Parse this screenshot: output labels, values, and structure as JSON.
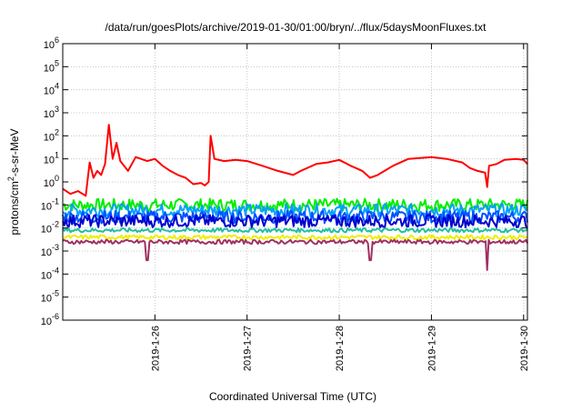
{
  "chart_data": {
    "type": "line",
    "title": "/data/run/goesPlots/archive/2019-01-30/01:00/bryn/../flux/5daysMoonFluxes.txt",
    "xlabel": "Coordinated Universal Time (UTC)",
    "ylabel": "protons/cm2-s-sr-MeV",
    "ylabel_parts": {
      "before": "protons/cm",
      "sup": "2",
      "after": "-s-sr-MeV"
    },
    "y_scale": "log",
    "ylim": [
      1e-06,
      1000000.0
    ],
    "xlim": [
      "2019-01-25T00:00",
      "2019-01-30T01:00"
    ],
    "grid": true,
    "y_ticks": [
      {
        "value": 1e-06,
        "base": "10",
        "exp": "-6"
      },
      {
        "value": 1e-05,
        "base": "10",
        "exp": "-5"
      },
      {
        "value": 0.0001,
        "base": "10",
        "exp": "-4"
      },
      {
        "value": 0.001,
        "base": "10",
        "exp": "-3"
      },
      {
        "value": 0.01,
        "base": "10",
        "exp": "-2"
      },
      {
        "value": 0.1,
        "base": "10",
        "exp": "-1"
      },
      {
        "value": 1.0,
        "base": "10",
        "exp": "0"
      },
      {
        "value": 10.0,
        "base": "10",
        "exp": "1"
      },
      {
        "value": 100.0,
        "base": "10",
        "exp": "2"
      },
      {
        "value": 1000.0,
        "base": "10",
        "exp": "3"
      },
      {
        "value": 10000.0,
        "base": "10",
        "exp": "4"
      },
      {
        "value": 100000.0,
        "base": "10",
        "exp": "5"
      },
      {
        "value": 1000000.0,
        "base": "10",
        "exp": "6"
      }
    ],
    "x_ticks": [
      {
        "date": "2019-01-26",
        "label": "2019-1-26"
      },
      {
        "date": "2019-01-27",
        "label": "2019-1-27"
      },
      {
        "date": "2019-01-28",
        "label": "2019-1-28"
      },
      {
        "date": "2019-01-29",
        "label": "2019-1-29"
      },
      {
        "date": "2019-01-30",
        "label": "2019-1-30"
      }
    ],
    "series": [
      {
        "color": "#ff0000",
        "points": [
          [
            "2019-01-25T00:00",
            0.5
          ],
          [
            "2019-01-25T02:00",
            0.3
          ],
          [
            "2019-01-25T04:00",
            0.4
          ],
          [
            "2019-01-25T06:00",
            0.25
          ],
          [
            "2019-01-25T07:00",
            7
          ],
          [
            "2019-01-25T08:00",
            1.5
          ],
          [
            "2019-01-25T09:00",
            3
          ],
          [
            "2019-01-25T10:00",
            2
          ],
          [
            "2019-01-25T11:00",
            6
          ],
          [
            "2019-01-25T12:00",
            300
          ],
          [
            "2019-01-25T13:00",
            10
          ],
          [
            "2019-01-25T14:00",
            50
          ],
          [
            "2019-01-25T15:00",
            8
          ],
          [
            "2019-01-25T17:00",
            3
          ],
          [
            "2019-01-25T19:00",
            12
          ],
          [
            "2019-01-25T22:00",
            8
          ],
          [
            "2019-01-26T00:00",
            10
          ],
          [
            "2019-01-26T02:00",
            5
          ],
          [
            "2019-01-26T04:00",
            3
          ],
          [
            "2019-01-26T06:00",
            2
          ],
          [
            "2019-01-26T08:00",
            1.5
          ],
          [
            "2019-01-26T10:00",
            0.8
          ],
          [
            "2019-01-26T12:00",
            0.9
          ],
          [
            "2019-01-26T13:00",
            0.7
          ],
          [
            "2019-01-26T14:00",
            1.0
          ],
          [
            "2019-01-26T14:30",
            100
          ],
          [
            "2019-01-26T15:30",
            10
          ],
          [
            "2019-01-26T18:00",
            8
          ],
          [
            "2019-01-26T21:00",
            9
          ],
          [
            "2019-01-27T00:00",
            8
          ],
          [
            "2019-01-27T04:00",
            5
          ],
          [
            "2019-01-27T08:00",
            3
          ],
          [
            "2019-01-27T12:00",
            2
          ],
          [
            "2019-01-27T14:00",
            3
          ],
          [
            "2019-01-27T18:00",
            6
          ],
          [
            "2019-01-27T21:00",
            7
          ],
          [
            "2019-01-28T00:00",
            9
          ],
          [
            "2019-01-28T03:00",
            5
          ],
          [
            "2019-01-28T06:00",
            3
          ],
          [
            "2019-01-28T08:00",
            1.5
          ],
          [
            "2019-01-28T10:00",
            2
          ],
          [
            "2019-01-28T14:00",
            5
          ],
          [
            "2019-01-28T18:00",
            10
          ],
          [
            "2019-01-29T00:00",
            12
          ],
          [
            "2019-01-29T04:00",
            10
          ],
          [
            "2019-01-29T08:00",
            7
          ],
          [
            "2019-01-29T10:00",
            4
          ],
          [
            "2019-01-29T12:00",
            3
          ],
          [
            "2019-01-29T14:00",
            2.5
          ],
          [
            "2019-01-29T14:30",
            0.6
          ],
          [
            "2019-01-29T15:00",
            5
          ],
          [
            "2019-01-29T17:00",
            6
          ],
          [
            "2019-01-29T19:00",
            9
          ],
          [
            "2019-01-29T22:00",
            10
          ],
          [
            "2019-01-30T00:00",
            9
          ],
          [
            "2019-01-30T01:00",
            6
          ]
        ]
      },
      {
        "color": "#00ee00",
        "level": 0.1,
        "dips": []
      },
      {
        "color": "#00a0ff",
        "level": 0.06,
        "dips": []
      },
      {
        "color": "#0050ff",
        "level": 0.03,
        "dips": []
      },
      {
        "color": "#0000cc",
        "level": 0.02,
        "dips": []
      },
      {
        "color": "#20c0a0",
        "level": 0.008,
        "dips": []
      },
      {
        "color": "#eeee00",
        "level": 0.004,
        "dips": []
      },
      {
        "color": "#a03060",
        "level": 0.0025,
        "dips": [
          [
            "2019-01-25T22:00",
            0.0004
          ],
          [
            "2019-01-28T08:00",
            0.0004
          ],
          [
            "2019-01-29T14:30",
            0.00015
          ]
        ]
      }
    ]
  }
}
